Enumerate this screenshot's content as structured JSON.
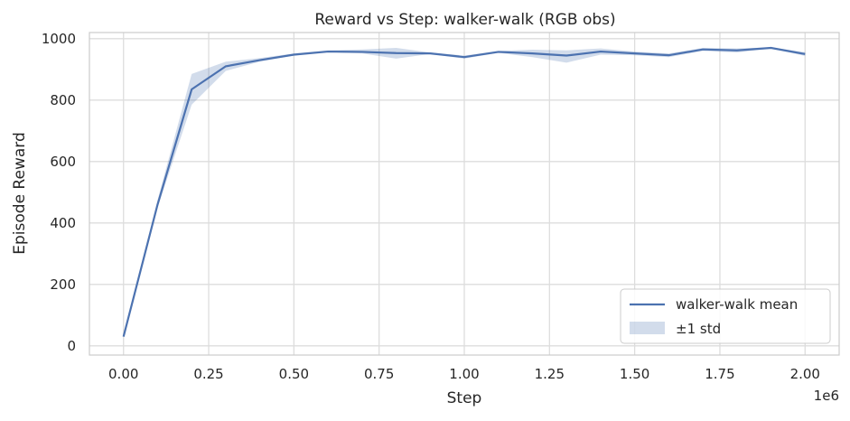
{
  "chart_data": {
    "type": "line",
    "title": "Reward vs Step: walker-walk (RGB obs)",
    "xlabel": "Step",
    "ylabel": "Episode Reward",
    "x_offset_label": "1e6",
    "xlim": [
      -0.1,
      2.1
    ],
    "ylim": [
      -30,
      1020
    ],
    "x_ticks": [
      0.0,
      0.25,
      0.5,
      0.75,
      1.0,
      1.25,
      1.5,
      1.75,
      2.0
    ],
    "x_tick_labels": [
      "0.00",
      "0.25",
      "0.50",
      "0.75",
      "1.00",
      "1.25",
      "1.50",
      "1.75",
      "2.00"
    ],
    "y_ticks": [
      0,
      200,
      400,
      600,
      800,
      1000
    ],
    "y_tick_labels": [
      "0",
      "200",
      "400",
      "600",
      "800",
      "1000"
    ],
    "grid": true,
    "legend_position": "lower-right",
    "series": [
      {
        "name": "walker-walk mean",
        "color": "#4c72b0",
        "x": [
          0.0,
          0.1,
          0.2,
          0.3,
          0.4,
          0.5,
          0.6,
          0.7,
          0.8,
          0.9,
          1.0,
          1.1,
          1.2,
          1.3,
          1.4,
          1.5,
          1.6,
          1.7,
          1.8,
          1.9,
          2.0
        ],
        "y": [
          30,
          460,
          835,
          910,
          930,
          948,
          958,
          957,
          953,
          952,
          940,
          957,
          952,
          945,
          958,
          952,
          946,
          965,
          962,
          970,
          950
        ],
        "lower": [
          30,
          450,
          785,
          895,
          925,
          945,
          956,
          952,
          935,
          950,
          935,
          954,
          940,
          922,
          948,
          946,
          940,
          960,
          955,
          968,
          944
        ],
        "upper": [
          30,
          475,
          885,
          925,
          937,
          952,
          962,
          965,
          970,
          955,
          945,
          960,
          964,
          962,
          968,
          958,
          952,
          970,
          968,
          972,
          956
        ]
      }
    ],
    "band_label": "±1 std",
    "band_color": "#4c72b0",
    "band_opacity": 0.25
  }
}
